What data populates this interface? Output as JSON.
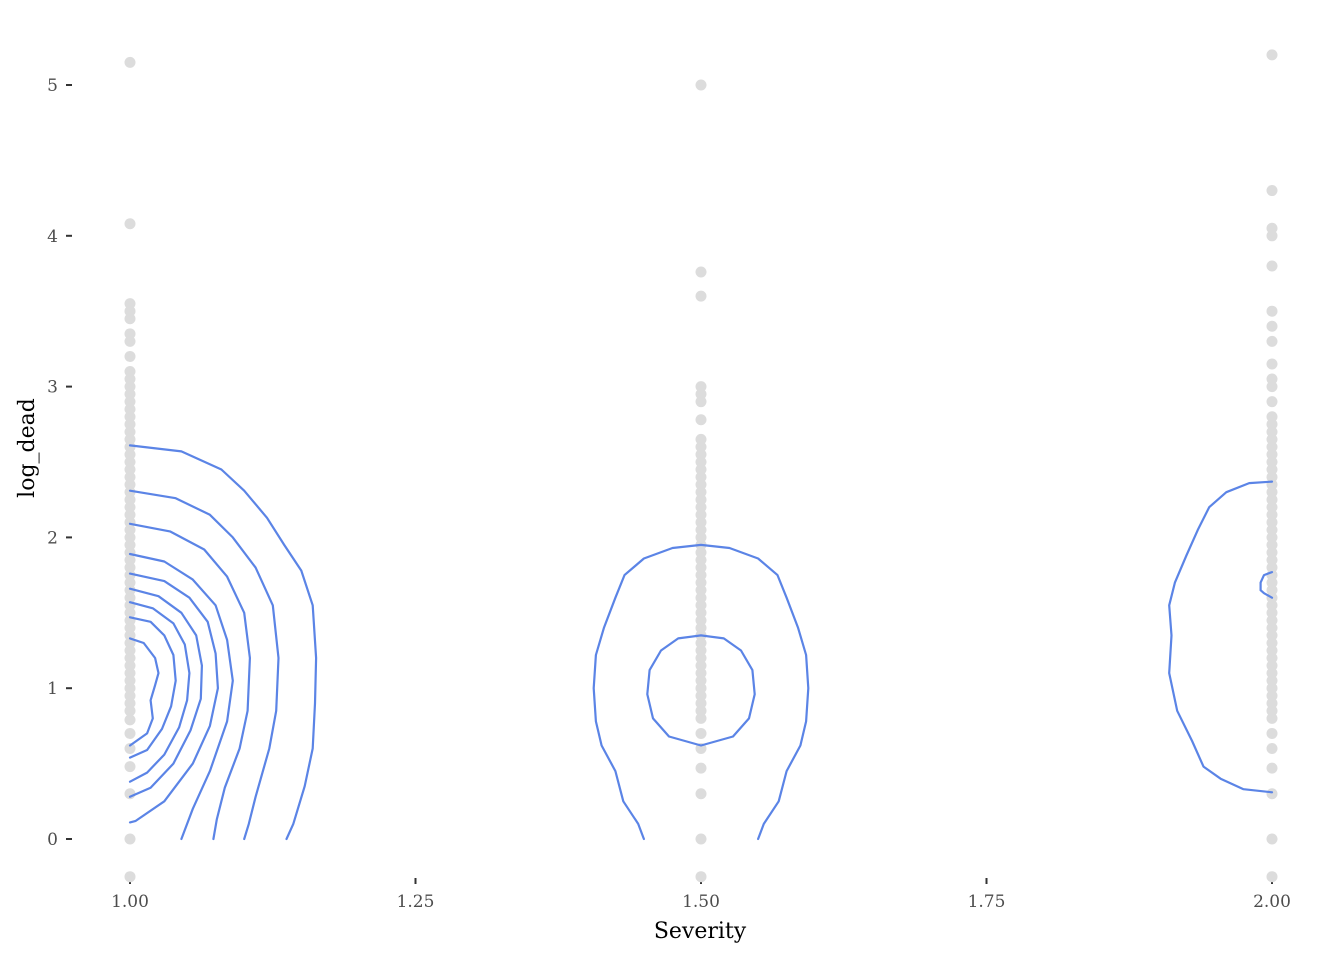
{
  "chart_data": {
    "type": "scatter",
    "title": "",
    "xlabel": "Severity",
    "ylabel": "log_dead",
    "xlim": [
      0.985,
      2.015
    ],
    "ylim": [
      -0.25,
      5.35
    ],
    "x_ticks": [
      1.0,
      1.25,
      1.5,
      1.75,
      2.0
    ],
    "x_tick_labels": [
      "1.00",
      "1.25",
      "1.50",
      "1.75",
      "2.00"
    ],
    "y_ticks": [
      0,
      1,
      2,
      3,
      4,
      5
    ],
    "y_tick_labels": [
      "0",
      "1",
      "2",
      "3",
      "4",
      "5"
    ],
    "grid": false,
    "legend": "none",
    "point_color": "#dcdcdc",
    "contour_color": "#5b84e6",
    "points": {
      "x_1.00": [
        -0.25,
        0,
        0.3,
        0.48,
        0.6,
        0.7,
        0.79,
        0.85,
        0.9,
        0.95,
        1.0,
        1.05,
        1.1,
        1.15,
        1.2,
        1.25,
        1.3,
        1.35,
        1.4,
        1.45,
        1.5,
        1.55,
        1.6,
        1.65,
        1.7,
        1.75,
        1.8,
        1.85,
        1.9,
        1.95,
        2.0,
        2.05,
        2.1,
        2.15,
        2.2,
        2.25,
        2.3,
        2.35,
        2.4,
        2.45,
        2.5,
        2.55,
        2.6,
        2.65,
        2.7,
        2.75,
        2.8,
        2.85,
        2.9,
        2.95,
        3.0,
        3.05,
        3.1,
        3.2,
        3.3,
        3.35,
        3.45,
        3.5,
        3.55,
        4.08,
        5.15
      ],
      "x_1.50": [
        -0.25,
        0,
        0.3,
        0.47,
        0.6,
        0.7,
        0.8,
        0.85,
        0.9,
        0.95,
        1.0,
        1.05,
        1.1,
        1.15,
        1.2,
        1.25,
        1.3,
        1.35,
        1.4,
        1.45,
        1.5,
        1.55,
        1.6,
        1.65,
        1.7,
        1.75,
        1.8,
        1.85,
        1.9,
        1.95,
        2.0,
        2.05,
        2.1,
        2.15,
        2.2,
        2.25,
        2.3,
        2.35,
        2.4,
        2.45,
        2.5,
        2.55,
        2.6,
        2.65,
        2.78,
        2.9,
        2.95,
        3.0,
        3.6,
        3.76,
        5.0
      ],
      "x_2.00": [
        -0.25,
        0,
        0.3,
        0.47,
        0.6,
        0.7,
        0.8,
        0.85,
        0.9,
        0.95,
        1.0,
        1.05,
        1.1,
        1.15,
        1.2,
        1.25,
        1.3,
        1.35,
        1.4,
        1.45,
        1.5,
        1.55,
        1.6,
        1.65,
        1.7,
        1.75,
        1.8,
        1.85,
        1.9,
        1.95,
        2.0,
        2.05,
        2.1,
        2.15,
        2.2,
        2.25,
        2.3,
        2.35,
        2.4,
        2.45,
        2.5,
        2.55,
        2.6,
        2.65,
        2.7,
        2.75,
        2.8,
        2.9,
        3.0,
        3.05,
        3.15,
        3.3,
        3.4,
        3.5,
        3.8,
        4.0,
        4.05,
        4.3,
        5.2
      ]
    },
    "contours": [
      {
        "group": "1.00",
        "level": 1,
        "points": [
          [
            1.0,
            2.61
          ],
          [
            1.045,
            2.57
          ],
          [
            1.08,
            2.45
          ],
          [
            1.1,
            2.31
          ],
          [
            1.12,
            2.13
          ],
          [
            1.135,
            1.95
          ],
          [
            1.15,
            1.78
          ],
          [
            1.16,
            1.55
          ],
          [
            1.163,
            1.2
          ],
          [
            1.162,
            0.9
          ],
          [
            1.16,
            0.6
          ],
          [
            1.153,
            0.35
          ],
          [
            1.143,
            0.1
          ],
          [
            1.137,
            0.0
          ]
        ]
      },
      {
        "group": "1.00",
        "level": 2,
        "points": [
          [
            1.0,
            2.31
          ],
          [
            1.04,
            2.26
          ],
          [
            1.07,
            2.15
          ],
          [
            1.09,
            2.0
          ],
          [
            1.11,
            1.8
          ],
          [
            1.125,
            1.55
          ],
          [
            1.13,
            1.2
          ],
          [
            1.128,
            0.85
          ],
          [
            1.122,
            0.6
          ],
          [
            1.11,
            0.28
          ],
          [
            1.104,
            0.1
          ],
          [
            1.1,
            0.0
          ]
        ]
      },
      {
        "group": "1.00",
        "level": 3,
        "points": [
          [
            1.0,
            2.09
          ],
          [
            1.035,
            2.04
          ],
          [
            1.065,
            1.92
          ],
          [
            1.085,
            1.74
          ],
          [
            1.1,
            1.5
          ],
          [
            1.105,
            1.2
          ],
          [
            1.103,
            0.85
          ],
          [
            1.096,
            0.6
          ],
          [
            1.083,
            0.34
          ],
          [
            1.076,
            0.13
          ],
          [
            1.073,
            0.0
          ]
        ]
      },
      {
        "group": "1.00",
        "level": 4,
        "points": [
          [
            1.0,
            1.89
          ],
          [
            1.03,
            1.84
          ],
          [
            1.055,
            1.72
          ],
          [
            1.075,
            1.55
          ],
          [
            1.085,
            1.32
          ],
          [
            1.09,
            1.05
          ],
          [
            1.085,
            0.78
          ],
          [
            1.07,
            0.45
          ],
          [
            1.055,
            0.2
          ],
          [
            1.045,
            0.0
          ]
        ]
      },
      {
        "group": "1.00",
        "level": 5,
        "points": [
          [
            1.0,
            1.76
          ],
          [
            1.03,
            1.71
          ],
          [
            1.052,
            1.6
          ],
          [
            1.068,
            1.44
          ],
          [
            1.075,
            1.23
          ],
          [
            1.077,
            1.0
          ],
          [
            1.07,
            0.75
          ],
          [
            1.055,
            0.5
          ],
          [
            1.03,
            0.25
          ],
          [
            1.005,
            0.12
          ],
          [
            1.0,
            0.11
          ]
        ]
      },
      {
        "group": "1.00",
        "level": 6,
        "points": [
          [
            1.0,
            1.66
          ],
          [
            1.025,
            1.61
          ],
          [
            1.045,
            1.5
          ],
          [
            1.058,
            1.35
          ],
          [
            1.063,
            1.15
          ],
          [
            1.062,
            0.93
          ],
          [
            1.053,
            0.72
          ],
          [
            1.038,
            0.5
          ],
          [
            1.018,
            0.34
          ],
          [
            1.0,
            0.28
          ]
        ]
      },
      {
        "group": "1.00",
        "level": 7,
        "points": [
          [
            1.0,
            1.57
          ],
          [
            1.02,
            1.53
          ],
          [
            1.038,
            1.43
          ],
          [
            1.048,
            1.29
          ],
          [
            1.052,
            1.1
          ],
          [
            1.05,
            0.92
          ],
          [
            1.043,
            0.74
          ],
          [
            1.03,
            0.56
          ],
          [
            1.015,
            0.44
          ],
          [
            1.0,
            0.38
          ]
        ]
      },
      {
        "group": "1.00",
        "level": 8,
        "points": [
          [
            1.0,
            1.47
          ],
          [
            1.018,
            1.44
          ],
          [
            1.03,
            1.35
          ],
          [
            1.038,
            1.22
          ],
          [
            1.04,
            1.05
          ],
          [
            1.036,
            0.88
          ],
          [
            1.028,
            0.73
          ],
          [
            1.015,
            0.59
          ],
          [
            1.0,
            0.54
          ]
        ]
      },
      {
        "group": "1.00",
        "level": 9,
        "points": [
          [
            1.0,
            1.33
          ],
          [
            1.012,
            1.3
          ],
          [
            1.022,
            1.2
          ],
          [
            1.025,
            1.1
          ],
          [
            1.022,
            1.02
          ],
          [
            1.018,
            0.92
          ],
          [
            1.02,
            0.8
          ],
          [
            1.015,
            0.7
          ],
          [
            1.0,
            0.62
          ]
        ]
      },
      {
        "group": "1.50",
        "level": 1,
        "points": [
          [
            1.45,
            0.0
          ],
          [
            1.445,
            0.1
          ],
          [
            1.432,
            0.25
          ],
          [
            1.425,
            0.45
          ],
          [
            1.413,
            0.62
          ],
          [
            1.408,
            0.78
          ],
          [
            1.406,
            1.0
          ],
          [
            1.408,
            1.22
          ],
          [
            1.415,
            1.4
          ],
          [
            1.425,
            1.6
          ],
          [
            1.433,
            1.75
          ],
          [
            1.45,
            1.86
          ],
          [
            1.475,
            1.93
          ],
          [
            1.5,
            1.95
          ],
          [
            1.525,
            1.93
          ],
          [
            1.55,
            1.86
          ],
          [
            1.567,
            1.75
          ],
          [
            1.575,
            1.6
          ],
          [
            1.585,
            1.4
          ],
          [
            1.592,
            1.22
          ],
          [
            1.594,
            1.0
          ],
          [
            1.592,
            0.78
          ],
          [
            1.587,
            0.62
          ],
          [
            1.575,
            0.45
          ],
          [
            1.568,
            0.25
          ],
          [
            1.555,
            0.1
          ],
          [
            1.55,
            0.0
          ]
        ]
      },
      {
        "group": "1.50",
        "level": 2,
        "points": [
          [
            1.5,
            1.35
          ],
          [
            1.52,
            1.33
          ],
          [
            1.535,
            1.25
          ],
          [
            1.545,
            1.12
          ],
          [
            1.547,
            0.96
          ],
          [
            1.542,
            0.8
          ],
          [
            1.528,
            0.68
          ],
          [
            1.5,
            0.62
          ],
          [
            1.472,
            0.68
          ],
          [
            1.458,
            0.8
          ],
          [
            1.453,
            0.96
          ],
          [
            1.455,
            1.12
          ],
          [
            1.465,
            1.25
          ],
          [
            1.48,
            1.33
          ],
          [
            1.5,
            1.35
          ]
        ]
      },
      {
        "group": "2.00",
        "level": 1,
        "points": [
          [
            2.0,
            2.37
          ],
          [
            1.98,
            2.36
          ],
          [
            1.96,
            2.3
          ],
          [
            1.945,
            2.2
          ],
          [
            1.935,
            2.05
          ],
          [
            1.925,
            1.88
          ],
          [
            1.915,
            1.7
          ],
          [
            1.91,
            1.55
          ],
          [
            1.912,
            1.35
          ],
          [
            1.91,
            1.1
          ],
          [
            1.917,
            0.85
          ],
          [
            1.93,
            0.65
          ],
          [
            1.94,
            0.48
          ],
          [
            1.955,
            0.4
          ],
          [
            1.975,
            0.33
          ],
          [
            2.0,
            0.31
          ]
        ]
      },
      {
        "group": "2.00",
        "level": 2,
        "points": [
          [
            2.0,
            1.77
          ],
          [
            1.993,
            1.75
          ],
          [
            1.99,
            1.7
          ],
          [
            1.99,
            1.65
          ],
          [
            1.993,
            1.63
          ],
          [
            2.0,
            1.6
          ]
        ]
      }
    ]
  }
}
